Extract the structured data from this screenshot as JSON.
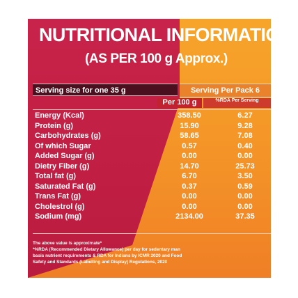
{
  "title_line1": "NUTRITIONAL INFORMATION",
  "title_line2": "(AS PER 100 g Approx.)",
  "serving_size_left": "Serving size for one 35 g",
  "serving_per_pack": "Serving Per Pack 6",
  "col_per_100g": "Per 100 g",
  "col_rda": "%RDA Per Serving",
  "rows": [
    {
      "label": "Energy (Kcal)",
      "per100": "358.50",
      "rda": "6.27"
    },
    {
      "label": "Protein (g)",
      "per100": "15.90",
      "rda": "9.28"
    },
    {
      "label": "Carbohydrates (g)",
      "per100": "58.65",
      "rda": "7.08"
    },
    {
      "label": "Of which Sugar",
      "per100": "0.57",
      "rda": "0.40"
    },
    {
      "label": "Added Sugar (g)",
      "per100": "0.00",
      "rda": "0.00"
    },
    {
      "label": "Dietry Fiber (g)",
      "per100": "14.70",
      "rda": "25.73"
    },
    {
      "label": "Total fat (g)",
      "per100": "6.70",
      "rda": "3.50"
    },
    {
      "label": "Saturated Fat (g)",
      "per100": "0.37",
      "rda": "0.59"
    },
    {
      "label": "Trans Fat (g)",
      "per100": "0.00",
      "rda": "0.00"
    },
    {
      "label": "Cholestrol (g)",
      "per100": "0.00",
      "rda": "0.00"
    },
    {
      "label": "Sodium (mg)",
      "per100": "2134.00",
      "rda": "37.35"
    }
  ],
  "note1": "The above value is approximate*",
  "note2": "*%RDA (Recommended Dietary Allowance) per day for sedentary man",
  "note3": "basis nutrient requirements & RDA for Indians by ICMR 2020 and Food",
  "note4": "Safety and Standards (Labelling and Display) Regulations, 2020"
}
